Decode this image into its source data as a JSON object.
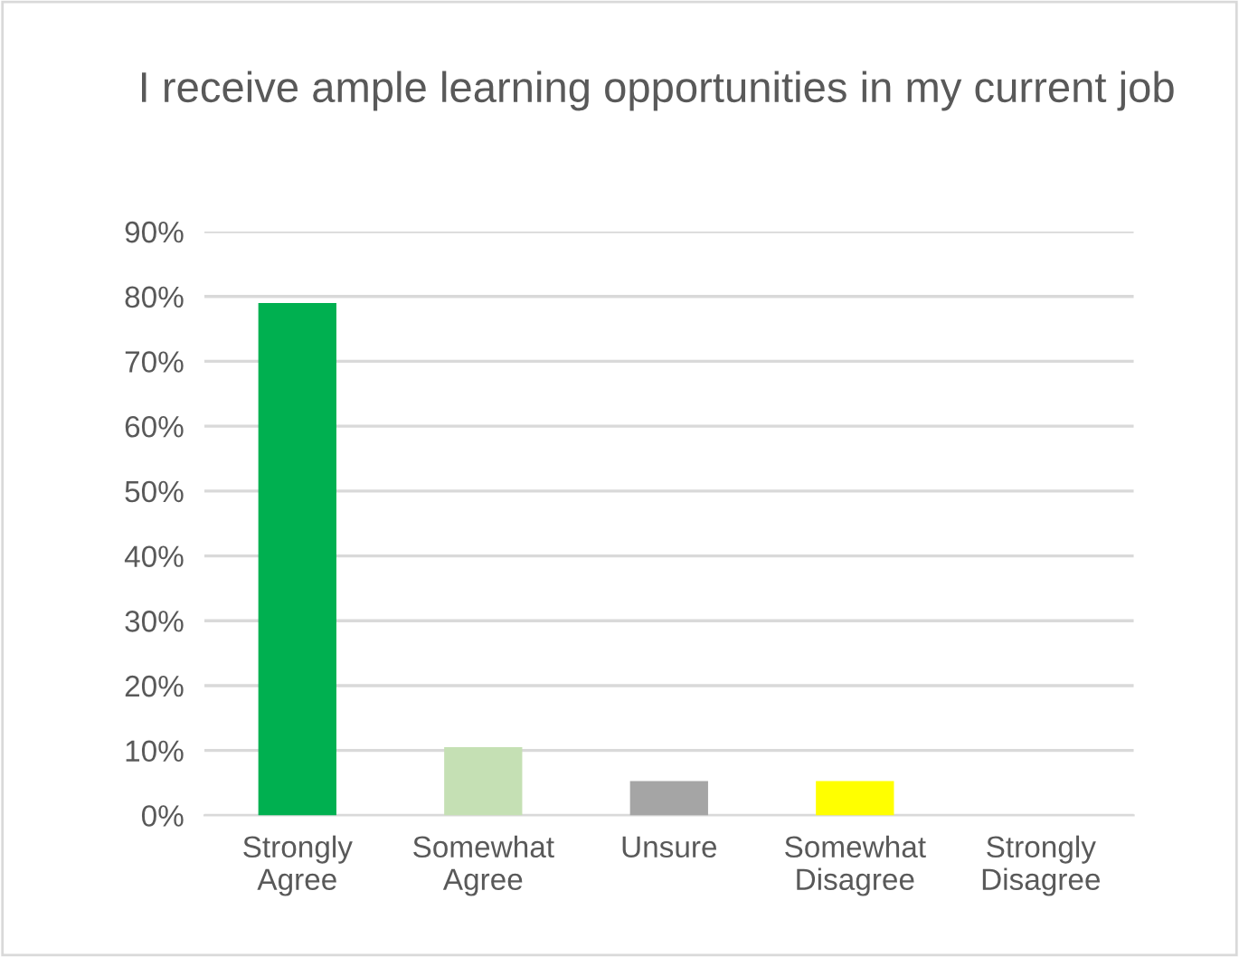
{
  "chart_data": {
    "type": "bar",
    "title": "I receive ample learning opportunities in my current job",
    "categories": [
      "Strongly Agree",
      "Somewhat Agree",
      "Unsure",
      "Somewhat Disagree",
      "Strongly Disagree"
    ],
    "values": [
      79,
      10.5,
      5.3,
      5.3,
      0
    ],
    "colors": [
      "#00b050",
      "#c5e0b4",
      "#a5a5a5",
      "#ffff00",
      "#70ad47"
    ],
    "ylim": [
      0,
      90
    ],
    "yticks": [
      {
        "value": 0,
        "label": "0%"
      },
      {
        "value": 10,
        "label": "10%"
      },
      {
        "value": 20,
        "label": "20%"
      },
      {
        "value": 30,
        "label": "30%"
      },
      {
        "value": 40,
        "label": "40%"
      },
      {
        "value": 50,
        "label": "50%"
      },
      {
        "value": 60,
        "label": "60%"
      },
      {
        "value": 70,
        "label": "70%"
      },
      {
        "value": 80,
        "label": "80%"
      },
      {
        "value": 90,
        "label": "90%"
      }
    ],
    "grid": "y",
    "legend": false
  }
}
